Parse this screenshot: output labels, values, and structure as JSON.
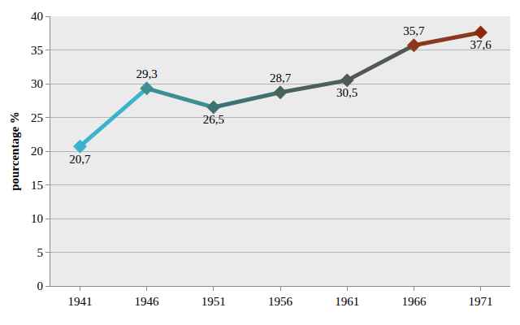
{
  "chart_data": {
    "type": "line",
    "categories": [
      "1941",
      "1946",
      "1951",
      "1956",
      "1961",
      "1966",
      "1971"
    ],
    "values": [
      20.7,
      29.3,
      26.5,
      28.7,
      30.5,
      35.7,
      37.6
    ],
    "value_labels": [
      "20,7",
      "29,3",
      "26,5",
      "28,7",
      "30,5",
      "35,7",
      "37,6"
    ],
    "colors": [
      "#3bb3cc",
      "#3d8f92",
      "#3f7272",
      "#4a625c",
      "#505a50",
      "#8a3a1c",
      "#8c2a0a"
    ],
    "y_label": "pourcentage %",
    "ylim": [
      0,
      40
    ],
    "yticks": [
      0,
      5,
      10,
      15,
      20,
      25,
      30,
      35,
      40
    ],
    "grid": true,
    "data_labels": true,
    "marker": "diamond"
  }
}
